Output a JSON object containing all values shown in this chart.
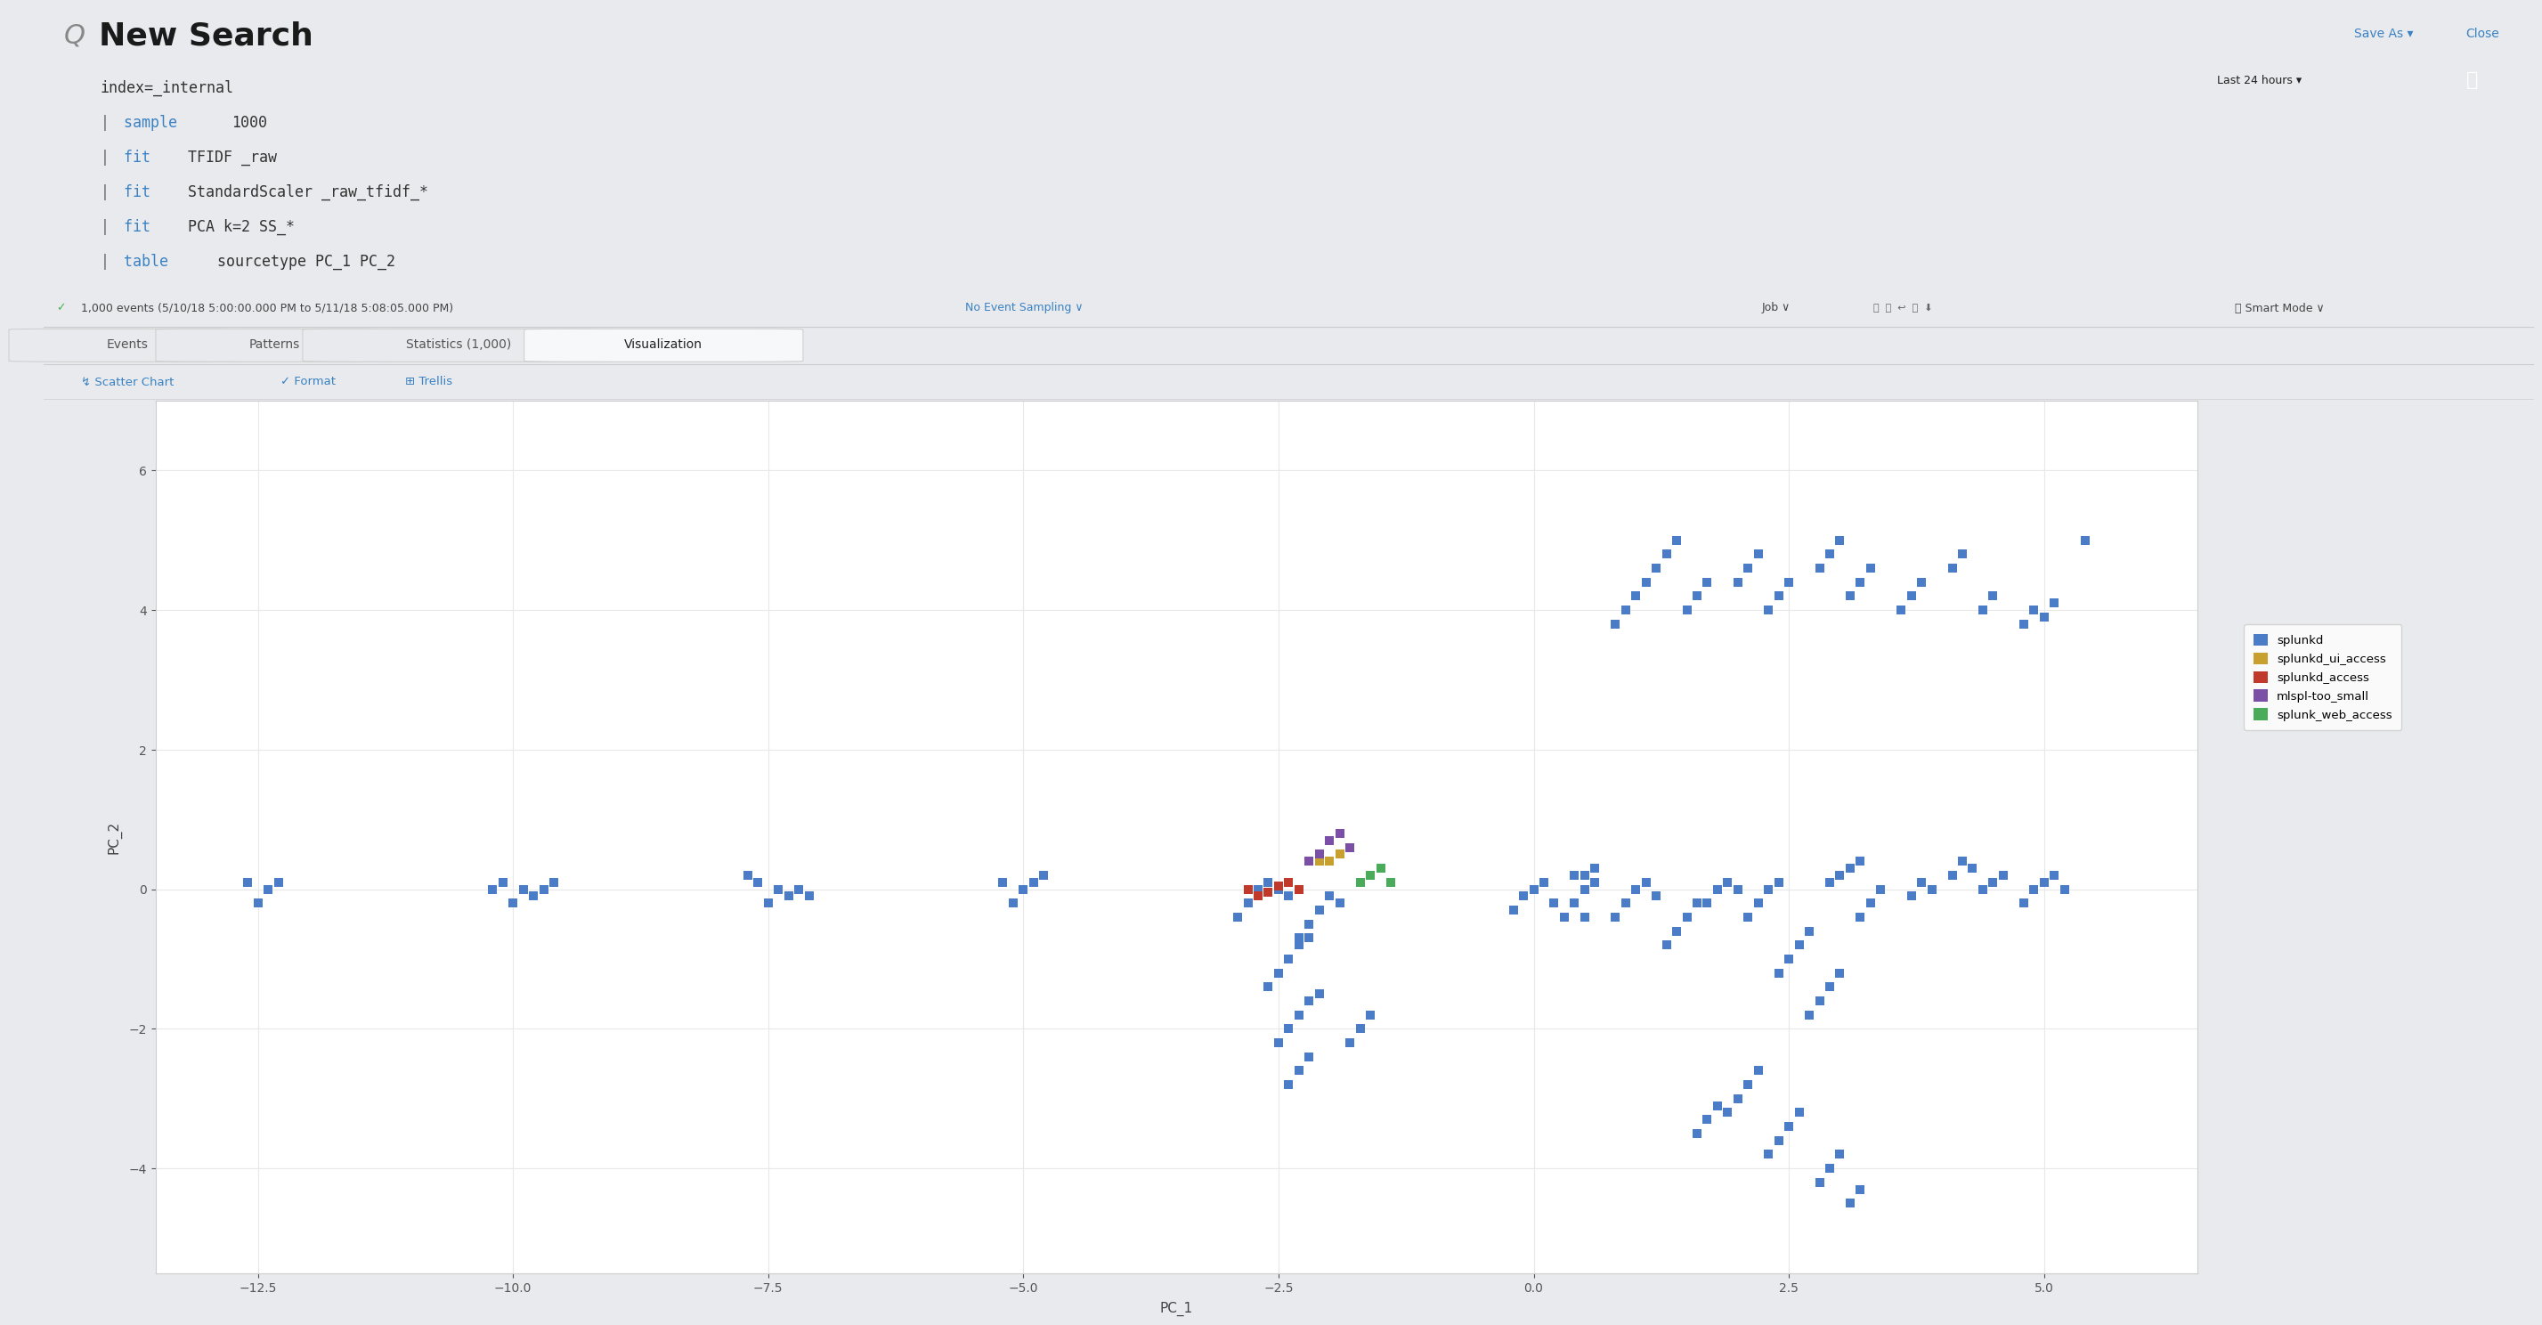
{
  "bg_color": "#e8eaed",
  "title": "New Search",
  "search_lines": [
    [
      [
        "index=_internal",
        "#333333"
      ]
    ],
    [
      [
        "|",
        "#666666"
      ],
      [
        " sample ",
        "#3b82c4"
      ],
      [
        "1000",
        "#333333"
      ]
    ],
    [
      [
        "|",
        "#666666"
      ],
      [
        " fit ",
        "#3b82c4"
      ],
      [
        "TFIDF _raw",
        "#333333"
      ]
    ],
    [
      [
        "|",
        "#666666"
      ],
      [
        " fit ",
        "#3b82c4"
      ],
      [
        "StandardScaler _raw_tfidf_*",
        "#333333"
      ]
    ],
    [
      [
        "|",
        "#666666"
      ],
      [
        " fit ",
        "#3b82c4"
      ],
      [
        "PCA k=2 SS_*",
        "#333333"
      ]
    ],
    [
      [
        "|",
        "#666666"
      ],
      [
        " table ",
        "#3b82c4"
      ],
      [
        "sourcetype PC_1 PC_2",
        "#333333"
      ]
    ]
  ],
  "status_text": " 1,000 events (5/10/18 5:00:00.000 PM to 5/11/18 5:08:05.000 PM)   No Event Sampling ⌄",
  "status_check": "✓",
  "status_no_event": "No Event Sampling ⌄",
  "tabs": [
    "Events",
    "Patterns",
    "Statistics (1,000)",
    "Visualization"
  ],
  "active_tab_idx": 3,
  "scatter_tools": [
    "↯ Scatter Chart",
    "✓ Format",
    "‖‖ Trellis"
  ],
  "xlabel": "PC_1",
  "ylabel": "PC_2",
  "xlim": [
    -13.5,
    6.5
  ],
  "ylim": [
    -5.5,
    7.0
  ],
  "xticks": [
    -12.5,
    -10.0,
    -7.5,
    -5.0,
    -2.5,
    0.0,
    2.5,
    5.0
  ],
  "yticks": [
    -4,
    -2,
    0,
    2,
    4,
    6
  ],
  "legend_labels": [
    "splunkd",
    "splunkd_ui_access",
    "splunkd_access",
    "mlspl-too_small",
    "splunk_web_access"
  ],
  "legend_colors": [
    "#4a7cc7",
    "#c8a030",
    "#c0392b",
    "#7b4fa6",
    "#4aab5a"
  ],
  "splunkd_points": [
    [
      -12.5,
      -0.2
    ],
    [
      -12.4,
      0.0
    ],
    [
      -12.3,
      0.1
    ],
    [
      -12.6,
      0.1
    ],
    [
      -10.0,
      -0.2
    ],
    [
      -9.9,
      0.0
    ],
    [
      -10.1,
      0.1
    ],
    [
      -10.2,
      0.0
    ],
    [
      -9.8,
      -0.1
    ],
    [
      -9.7,
      0.0
    ],
    [
      -9.6,
      0.1
    ],
    [
      -7.5,
      -0.2
    ],
    [
      -7.4,
      0.0
    ],
    [
      -7.6,
      0.1
    ],
    [
      -7.3,
      -0.1
    ],
    [
      -7.7,
      0.2
    ],
    [
      -7.2,
      0.0
    ],
    [
      -7.1,
      -0.1
    ],
    [
      -5.1,
      -0.2
    ],
    [
      -5.0,
      0.0
    ],
    [
      -4.9,
      0.1
    ],
    [
      -4.8,
      0.2
    ],
    [
      -5.2,
      0.1
    ],
    [
      -2.9,
      -0.4
    ],
    [
      -2.8,
      -0.2
    ],
    [
      -2.7,
      0.0
    ],
    [
      -2.6,
      0.1
    ],
    [
      -2.5,
      0.0
    ],
    [
      -2.4,
      -0.1
    ],
    [
      -2.3,
      0.0
    ],
    [
      -2.3,
      -0.7
    ],
    [
      -2.2,
      -0.5
    ],
    [
      -2.1,
      -0.3
    ],
    [
      -2.0,
      -0.1
    ],
    [
      -1.9,
      -0.2
    ],
    [
      -2.6,
      -1.4
    ],
    [
      -2.5,
      -1.2
    ],
    [
      -2.4,
      -1.0
    ],
    [
      -2.3,
      -0.8
    ],
    [
      -2.2,
      -0.7
    ],
    [
      -2.5,
      -2.2
    ],
    [
      -2.4,
      -2.0
    ],
    [
      -2.3,
      -1.8
    ],
    [
      -2.2,
      -1.6
    ],
    [
      -2.1,
      -1.5
    ],
    [
      -2.4,
      -2.8
    ],
    [
      -2.3,
      -2.6
    ],
    [
      -2.2,
      -2.4
    ],
    [
      -1.8,
      -2.2
    ],
    [
      -1.7,
      -2.0
    ],
    [
      -1.6,
      -1.8
    ],
    [
      -0.2,
      -0.3
    ],
    [
      -0.1,
      -0.1
    ],
    [
      0.0,
      0.0
    ],
    [
      0.1,
      0.1
    ],
    [
      0.2,
      -0.2
    ],
    [
      0.3,
      -0.4
    ],
    [
      0.4,
      -0.2
    ],
    [
      0.5,
      0.0
    ],
    [
      0.6,
      0.1
    ],
    [
      0.5,
      0.2
    ],
    [
      0.6,
      0.3
    ],
    [
      0.8,
      -0.4
    ],
    [
      0.9,
      -0.2
    ],
    [
      1.0,
      0.0
    ],
    [
      1.1,
      0.1
    ],
    [
      1.2,
      -0.1
    ],
    [
      1.3,
      -0.8
    ],
    [
      1.4,
      -0.6
    ],
    [
      1.5,
      -0.4
    ],
    [
      1.6,
      -0.2
    ],
    [
      1.7,
      -0.2
    ],
    [
      1.8,
      0.0
    ],
    [
      1.9,
      0.1
    ],
    [
      2.0,
      0.0
    ],
    [
      2.1,
      -0.4
    ],
    [
      2.2,
      -0.2
    ],
    [
      2.3,
      0.0
    ],
    [
      2.4,
      0.1
    ],
    [
      2.4,
      -1.2
    ],
    [
      2.5,
      -1.0
    ],
    [
      2.6,
      -0.8
    ],
    [
      2.7,
      -0.6
    ],
    [
      2.7,
      -1.8
    ],
    [
      2.8,
      -1.6
    ],
    [
      2.9,
      -1.4
    ],
    [
      3.0,
      -1.2
    ],
    [
      2.9,
      0.1
    ],
    [
      3.0,
      0.2
    ],
    [
      3.1,
      0.3
    ],
    [
      3.2,
      0.4
    ],
    [
      3.2,
      -0.4
    ],
    [
      3.3,
      -0.2
    ],
    [
      3.4,
      0.0
    ],
    [
      3.7,
      -0.1
    ],
    [
      3.8,
      0.1
    ],
    [
      3.9,
      0.0
    ],
    [
      4.1,
      0.2
    ],
    [
      4.2,
      0.4
    ],
    [
      4.3,
      0.3
    ],
    [
      4.4,
      0.0
    ],
    [
      4.5,
      0.1
    ],
    [
      4.6,
      0.2
    ],
    [
      4.8,
      -0.2
    ],
    [
      4.9,
      0.0
    ],
    [
      5.0,
      0.1
    ],
    [
      5.1,
      0.2
    ],
    [
      5.2,
      0.0
    ],
    [
      1.9,
      -3.2
    ],
    [
      2.0,
      -3.0
    ],
    [
      2.1,
      -2.8
    ],
    [
      2.2,
      -2.6
    ],
    [
      2.3,
      -3.8
    ],
    [
      2.4,
      -3.6
    ],
    [
      2.5,
      -3.4
    ],
    [
      2.6,
      -3.2
    ],
    [
      1.6,
      -3.5
    ],
    [
      1.7,
      -3.3
    ],
    [
      1.8,
      -3.1
    ],
    [
      2.8,
      -4.2
    ],
    [
      2.9,
      -4.0
    ],
    [
      3.0,
      -3.8
    ],
    [
      3.1,
      -4.5
    ],
    [
      3.2,
      -4.3
    ],
    [
      0.8,
      3.8
    ],
    [
      0.9,
      4.0
    ],
    [
      1.0,
      4.2
    ],
    [
      1.1,
      4.4
    ],
    [
      1.2,
      4.6
    ],
    [
      1.3,
      4.8
    ],
    [
      1.4,
      5.0
    ],
    [
      1.5,
      4.0
    ],
    [
      1.6,
      4.2
    ],
    [
      1.7,
      4.4
    ],
    [
      2.0,
      4.4
    ],
    [
      2.1,
      4.6
    ],
    [
      2.2,
      4.8
    ],
    [
      2.3,
      4.0
    ],
    [
      2.4,
      4.2
    ],
    [
      2.5,
      4.4
    ],
    [
      2.8,
      4.6
    ],
    [
      2.9,
      4.8
    ],
    [
      3.0,
      5.0
    ],
    [
      3.1,
      4.2
    ],
    [
      3.2,
      4.4
    ],
    [
      3.3,
      4.6
    ],
    [
      3.6,
      4.0
    ],
    [
      3.7,
      4.2
    ],
    [
      3.8,
      4.4
    ],
    [
      4.1,
      4.6
    ],
    [
      4.2,
      4.8
    ],
    [
      4.4,
      4.0
    ],
    [
      4.5,
      4.2
    ],
    [
      4.8,
      3.8
    ],
    [
      4.9,
      4.0
    ],
    [
      5.0,
      3.9
    ],
    [
      5.1,
      4.1
    ],
    [
      5.4,
      5.0
    ],
    [
      0.5,
      -0.4
    ],
    [
      0.4,
      0.2
    ]
  ],
  "splunkd_ui_access_points": [
    [
      -2.0,
      0.4
    ],
    [
      -1.9,
      0.5
    ],
    [
      -1.8,
      0.6
    ],
    [
      -2.1,
      0.4
    ]
  ],
  "splunkd_access_points": [
    [
      -2.6,
      -0.05
    ],
    [
      -2.5,
      0.05
    ],
    [
      -2.4,
      0.1
    ],
    [
      -2.3,
      0.0
    ],
    [
      -2.7,
      -0.1
    ],
    [
      -2.8,
      0.0
    ]
  ],
  "mlspl_too_small_points": [
    [
      -2.1,
      0.5
    ],
    [
      -2.0,
      0.7
    ],
    [
      -1.9,
      0.8
    ],
    [
      -1.8,
      0.6
    ],
    [
      -2.2,
      0.4
    ]
  ],
  "splunk_web_access_points": [
    [
      -1.7,
      0.1
    ],
    [
      -1.6,
      0.2
    ],
    [
      -1.5,
      0.3
    ],
    [
      -1.4,
      0.1
    ]
  ],
  "save_as_text": "Save As ▾",
  "close_text": "Close",
  "last_24h_text": "Last 24 hours ▾",
  "job_text": "Job ▾",
  "smart_mode_text": "• Smart Mode ▾",
  "chart_bg": "#ffffff",
  "grid_color": "#e8e8e8",
  "marker_size": 60,
  "top_bg": "#e8eaed",
  "search_bg": "#ffffff",
  "tab_bg": "#e8eaed",
  "active_tab_bg": "#f7f8fa"
}
